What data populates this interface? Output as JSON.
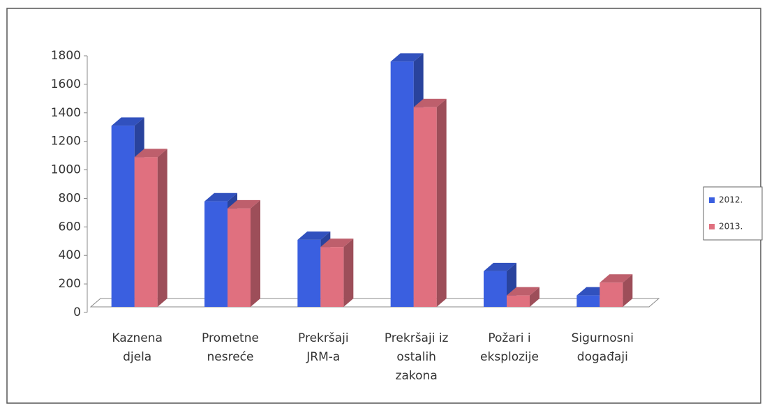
{
  "chart_data": {
    "type": "bar3d",
    "categories": [
      "Kaznena djela",
      "Prometne nesreće",
      "Prekršaji JRM-a",
      "Prekršaji iz ostalih zakona",
      "Požari i eksplozije",
      "Sigurnosni događaji"
    ],
    "series": [
      {
        "name": "2012.",
        "color": "#3a5fe0",
        "values": [
          1270,
          740,
          470,
          1720,
          250,
          80
        ]
      },
      {
        "name": "2013.",
        "color": "#e0707f",
        "values": [
          1050,
          690,
          420,
          1400,
          80,
          170
        ]
      }
    ],
    "ylim": [
      0,
      1800
    ],
    "yticks": [
      0,
      200,
      400,
      600,
      800,
      1000,
      1200,
      1400,
      1600,
      1800
    ],
    "legend": "right"
  }
}
